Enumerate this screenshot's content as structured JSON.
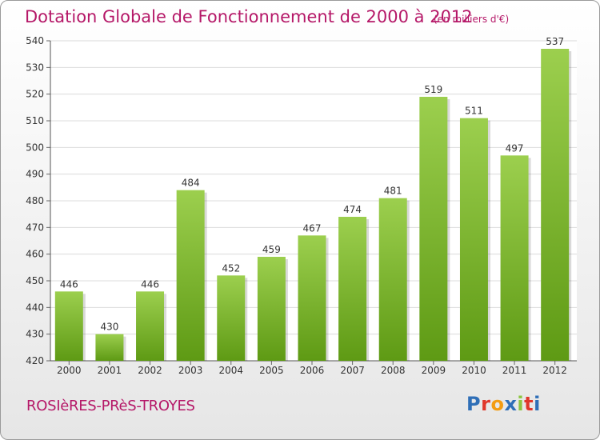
{
  "title": "Dotation Globale de Fonctionnement de 2000 à 2012",
  "subtitle": "(en milliers d'€)",
  "place": "ROSIèRES-PRèS-TROYES",
  "logo": {
    "letters": [
      "P",
      "r",
      "o",
      "x",
      "i",
      "t",
      "i"
    ],
    "colors": [
      "#2f6fb7",
      "#e0372b",
      "#f39c12",
      "#2f6fb7",
      "#8cc63f",
      "#e0372b",
      "#2f6fb7"
    ]
  },
  "colors": {
    "bar_top": "#9ccf4e",
    "bar_bottom": "#5e9a14",
    "title": "#b51868",
    "grid": "#dcdcdc"
  },
  "chart_data": {
    "type": "bar",
    "title": "Dotation Globale de Fonctionnement de 2000 à 2012",
    "subtitle": "(en milliers d'€)",
    "categories": [
      "2000",
      "2001",
      "2002",
      "2003",
      "2004",
      "2005",
      "2006",
      "2007",
      "2008",
      "2009",
      "2010",
      "2011",
      "2012"
    ],
    "values": [
      446,
      430,
      446,
      484,
      452,
      459,
      467,
      474,
      481,
      519,
      511,
      497,
      537
    ],
    "ylim": [
      420,
      540
    ],
    "yticks": [
      420,
      430,
      440,
      450,
      460,
      470,
      480,
      490,
      500,
      510,
      520,
      530,
      540
    ],
    "grid": true
  }
}
